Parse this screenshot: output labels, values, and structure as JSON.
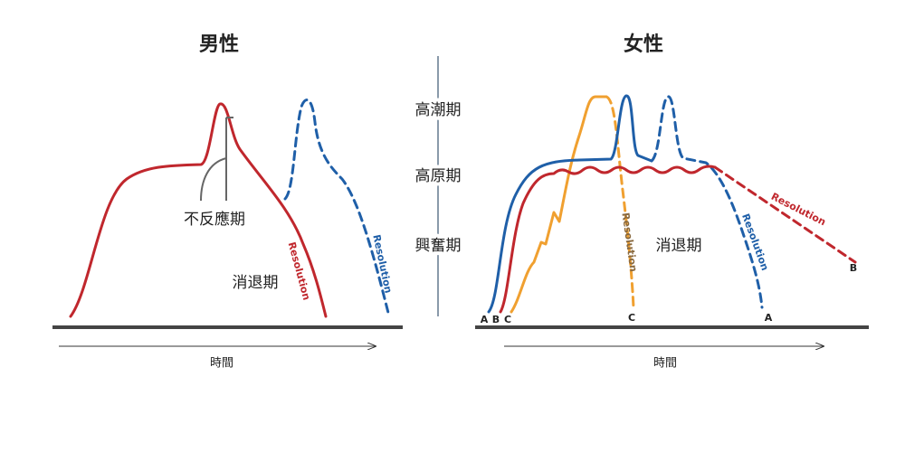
{
  "left": {
    "title": "男性",
    "refractory": "不反應期",
    "resolution": "消退期",
    "curve_labels": [
      "Resolution",
      "Resolution"
    ],
    "x_axis": "時間"
  },
  "center": {
    "phases": [
      "高潮期",
      "高原期",
      "興奮期"
    ]
  },
  "right": {
    "title": "女性",
    "resolution": "消退期",
    "curve_labels": [
      "Resolution",
      "Resolution",
      "Resolution"
    ],
    "start_labels": [
      "A",
      "B",
      "C"
    ],
    "end_labels": [
      "C",
      "A",
      "B"
    ],
    "x_axis": "時間"
  }
}
